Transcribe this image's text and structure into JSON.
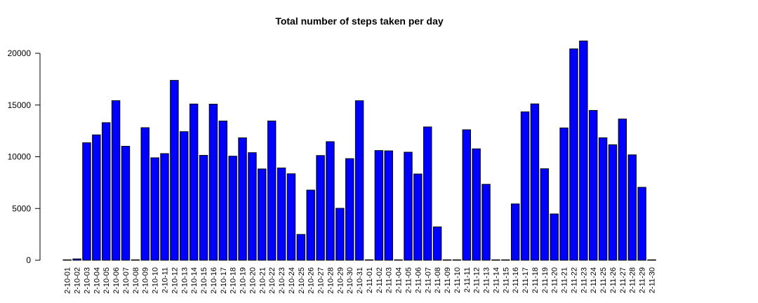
{
  "chart_data": {
    "type": "bar",
    "title": "Total number of steps taken per day",
    "xlabel": "",
    "ylabel": "",
    "ylim": [
      0,
      21500
    ],
    "yticks": [
      0,
      5000,
      10000,
      15000,
      20000
    ],
    "bar_color": "#0000ff",
    "bar_border_color": "#000000",
    "categories": [
      "2-10-01",
      "2-10-02",
      "2-10-03",
      "2-10-04",
      "2-10-05",
      "2-10-06",
      "2-10-07",
      "2-10-08",
      "2-10-09",
      "2-10-10",
      "2-10-11",
      "2-10-12",
      "2-10-13",
      "2-10-14",
      "2-10-15",
      "2-10-16",
      "2-10-17",
      "2-10-18",
      "2-10-19",
      "2-10-20",
      "2-10-21",
      "2-10-22",
      "2-10-23",
      "2-10-24",
      "2-10-25",
      "2-10-26",
      "2-10-27",
      "2-10-28",
      "2-10-29",
      "2-10-30",
      "2-10-31",
      "2-11-01",
      "2-11-02",
      "2-11-03",
      "2-11-04",
      "2-11-05",
      "2-11-06",
      "2-11-07",
      "2-11-08",
      "2-11-09",
      "2-11-10",
      "2-11-11",
      "2-11-12",
      "2-11-13",
      "2-11-14",
      "2-11-15",
      "2-11-16",
      "2-11-17",
      "2-11-18",
      "2-11-19",
      "2-11-20",
      "2-11-21",
      "2-11-22",
      "2-11-23",
      "2-11-24",
      "2-11-25",
      "2-11-26",
      "2-11-27",
      "2-11-28",
      "2-11-29",
      "2-11-30"
    ],
    "values": [
      0,
      126,
      11352,
      12116,
      13294,
      15420,
      11015,
      0,
      12811,
      9900,
      10304,
      17382,
      12426,
      15098,
      10139,
      15084,
      13452,
      10056,
      11829,
      10395,
      8821,
      13460,
      8918,
      8355,
      2492,
      6778,
      10119,
      11458,
      5018,
      9819,
      15414,
      0,
      10600,
      10571,
      0,
      10439,
      8334,
      12883,
      3219,
      0,
      0,
      12608,
      10765,
      7336,
      0,
      41,
      5441,
      14339,
      15110,
      8841,
      4472,
      12787,
      20427,
      21194,
      14478,
      11834,
      11162,
      13646,
      10183,
      7047,
      0
    ]
  }
}
